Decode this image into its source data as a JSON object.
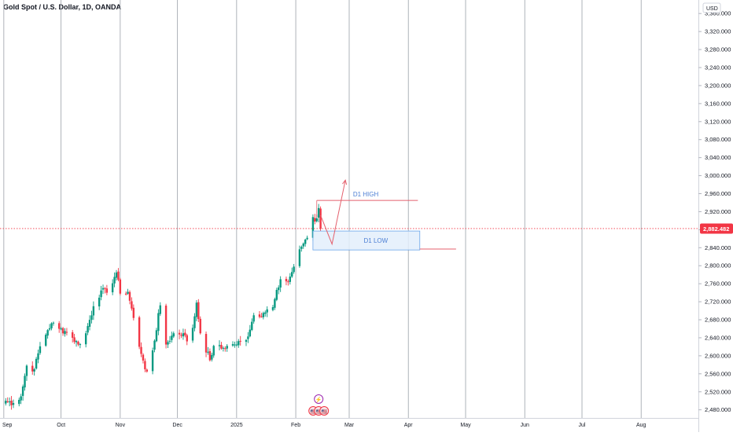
{
  "header": {
    "title": "Gold Spot / U.S. Dollar, 1D, OANDA"
  },
  "chart_data": {
    "type": "candlestick",
    "currency_label": "USD",
    "y_ticks": [
      2480,
      2520,
      2560,
      2600,
      2640,
      2680,
      2720,
      2760,
      2800,
      2840,
      2880,
      2920,
      2960,
      3000,
      3040,
      3080,
      3120,
      3160,
      3200,
      3240,
      3280,
      3320,
      3360
    ],
    "y_tick_labels": [
      "2,480.000",
      "2,520.000",
      "2,560.000",
      "2,600.000",
      "2,640.000",
      "2,680.000",
      "2,720.000",
      "2,760.000",
      "2,800.000",
      "2,840.000",
      "2,880.000",
      "2,920.000",
      "2,960.000",
      "3,000.000",
      "3,040.000",
      "3,080.000",
      "3,120.000",
      "3,160.000",
      "3,200.000",
      "3,240.000",
      "3,280.000",
      "3,320.000",
      "3,360.000"
    ],
    "ylim": [
      2462,
      3390
    ],
    "x_range": [
      "2024-08-30",
      "2025-08-31"
    ],
    "x_ticks": [
      {
        "date": "2024-09-01",
        "label": "Sep"
      },
      {
        "date": "2024-10-01",
        "label": "Oct"
      },
      {
        "date": "2024-11-01",
        "label": "Nov"
      },
      {
        "date": "2024-12-01",
        "label": "Dec"
      },
      {
        "date": "2025-01-01",
        "label": "2025"
      },
      {
        "date": "2025-02-01",
        "label": "Feb"
      },
      {
        "date": "2025-03-01",
        "label": "Mar"
      },
      {
        "date": "2025-04-01",
        "label": "Apr"
      },
      {
        "date": "2025-05-01",
        "label": "May"
      },
      {
        "date": "2025-06-01",
        "label": "Jun"
      },
      {
        "date": "2025-07-01",
        "label": "Jul"
      },
      {
        "date": "2025-08-01",
        "label": "Aug"
      }
    ],
    "current_price": 2882.482,
    "current_price_label": "2,882.482",
    "colors": {
      "up": "#089981",
      "down": "#f23645",
      "zone_fill": "#e3eefb",
      "zone_border": "#6aa6ea",
      "level_line": "#e4606d",
      "label_text": "#4c7fd4"
    },
    "close_anchors": [
      [
        "2024-09-02",
        2500
      ],
      [
        "2024-09-06",
        2495
      ],
      [
        "2024-09-10",
        2510
      ],
      [
        "2024-09-13",
        2578
      ],
      [
        "2024-09-17",
        2570
      ],
      [
        "2024-09-20",
        2621
      ],
      [
        "2024-09-24",
        2657
      ],
      [
        "2024-09-26",
        2672
      ],
      [
        "2024-09-30",
        2660
      ],
      [
        "2024-10-03",
        2655
      ],
      [
        "2024-10-07",
        2640
      ],
      [
        "2024-10-10",
        2625
      ],
      [
        "2024-10-14",
        2650
      ],
      [
        "2024-10-18",
        2710
      ],
      [
        "2024-10-22",
        2745
      ],
      [
        "2024-10-25",
        2740
      ],
      [
        "2024-10-30",
        2785
      ],
      [
        "2024-11-01",
        2738
      ],
      [
        "2024-11-05",
        2742
      ],
      [
        "2024-11-07",
        2705
      ],
      [
        "2024-11-08",
        2684
      ],
      [
        "2024-11-11",
        2620
      ],
      [
        "2024-11-14",
        2570
      ],
      [
        "2024-11-15",
        2565
      ],
      [
        "2024-11-18",
        2612
      ],
      [
        "2024-11-22",
        2712
      ],
      [
        "2024-11-25",
        2625
      ],
      [
        "2024-11-29",
        2650
      ],
      [
        "2024-12-04",
        2650
      ],
      [
        "2024-12-06",
        2632
      ],
      [
        "2024-12-09",
        2662
      ],
      [
        "2024-12-11",
        2718
      ],
      [
        "2024-12-13",
        2650
      ],
      [
        "2024-12-18",
        2590
      ],
      [
        "2024-12-20",
        2622
      ],
      [
        "2024-12-24",
        2616
      ],
      [
        "2024-12-27",
        2622
      ],
      [
        "2024-12-31",
        2625
      ],
      [
        "2025-01-06",
        2635
      ],
      [
        "2025-01-10",
        2690
      ],
      [
        "2025-01-15",
        2695
      ],
      [
        "2025-01-20",
        2708
      ],
      [
        "2025-01-24",
        2770
      ],
      [
        "2025-01-28",
        2765
      ],
      [
        "2025-01-31",
        2798
      ],
      [
        "2025-02-04",
        2842
      ],
      [
        "2025-02-06",
        2858
      ],
      [
        "2025-02-07",
        2862
      ],
      [
        "2025-02-10",
        2908
      ],
      [
        "2025-02-11",
        2898
      ],
      [
        "2025-02-12",
        2905
      ],
      [
        "2025-02-13",
        2928
      ],
      [
        "2025-02-14",
        2882
      ]
    ],
    "annotations": {
      "d1_high": {
        "label": "D1 HIGH",
        "price": 2945,
        "from": "2025-02-12",
        "to": "2025-04-06"
      },
      "d1_low_zone": {
        "label": "D1 LOW",
        "top": 2877,
        "bottom": 2835,
        "from": "2025-02-10",
        "to": "2025-04-07"
      },
      "d1_low_line": {
        "price": 2837,
        "from": "2025-04-07",
        "to": "2025-04-26"
      },
      "projection_path": [
        [
          "2025-02-14",
          2912
        ],
        [
          "2025-02-20",
          2848
        ],
        [
          "2025-02-27",
          2990
        ]
      ]
    },
    "event_icons": [
      "⚡",
      "🇺🇸"
    ]
  }
}
